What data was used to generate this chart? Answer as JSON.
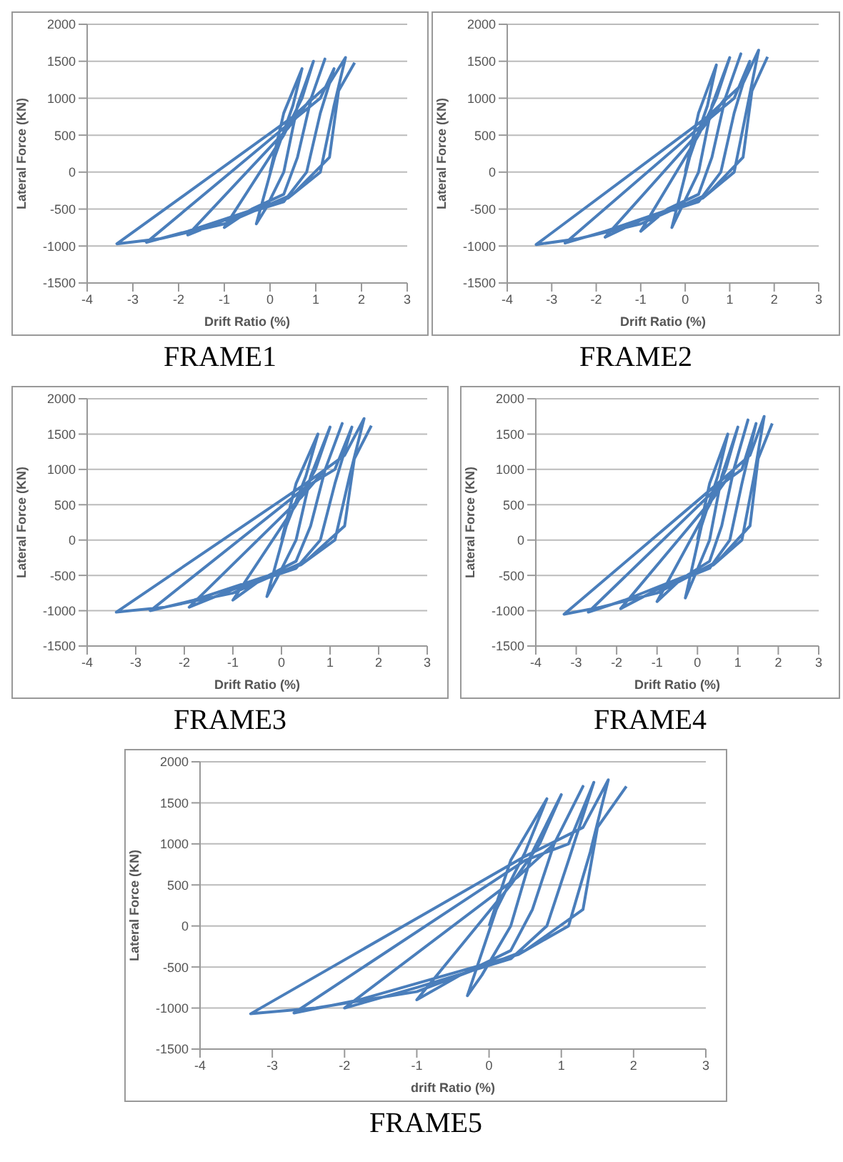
{
  "chart_data": [
    {
      "type": "line",
      "title": "FRAME1",
      "xlabel": "Drift Ratio (%)",
      "ylabel": "Lateral Force (KN)",
      "xlim": [
        -4,
        3
      ],
      "xticks": [
        -4,
        -3,
        -2,
        -1,
        0,
        1,
        2,
        3
      ],
      "ylim": [
        -1500,
        2000
      ],
      "yticks": [
        -1500,
        -1000,
        -500,
        0,
        500,
        1000,
        1500,
        2000
      ],
      "grid": "y",
      "marker": "none",
      "line_style": "solid",
      "series": [
        {
          "color": "#4a7ebb",
          "x": [
            0,
            0.3,
            0.7,
            0.5,
            0.1,
            -0.3,
            -0.1,
            0.3,
            0.6,
            0.95,
            0.7,
            0.3,
            -1,
            -0.4,
            0.3,
            0.6,
            0.9,
            1.2,
            0.9,
            0.4,
            -1.8,
            -1,
            0.3,
            0.8,
            1.1,
            1.4,
            1.1,
            0.5,
            -2.7,
            -1.8,
            0.4,
            1.1,
            1.4,
            1.65,
            1.3,
            0.5,
            -3.35,
            -2.4,
            -1,
            0.5,
            1.3,
            1.5,
            1.85
          ],
          "values": [
            0,
            800,
            1400,
            900,
            200,
            -700,
            -500,
            0,
            900,
            1500,
            1000,
            500,
            -750,
            -500,
            -300,
            200,
            1000,
            1530,
            1000,
            600,
            -850,
            -650,
            -400,
            0,
            800,
            1400,
            1000,
            700,
            -950,
            -800,
            -350,
            0,
            900,
            1550,
            1200,
            750,
            -970,
            -900,
            -700,
            -300,
            200,
            1100,
            1480
          ]
        }
      ]
    },
    {
      "type": "line",
      "title": "FRAME2",
      "xlabel": "Drift Ratio (%)",
      "ylabel": "Lateral Force (KN)",
      "xlim": [
        -4,
        3
      ],
      "xticks": [
        -4,
        -3,
        -2,
        -1,
        0,
        1,
        2,
        3
      ],
      "ylim": [
        -1500,
        2000
      ],
      "yticks": [
        -1500,
        -1000,
        -500,
        0,
        500,
        1000,
        1500,
        2000
      ],
      "grid": "y",
      "marker": "none",
      "line_style": "solid",
      "series": [
        {
          "color": "#4a7ebb",
          "x": [
            0,
            0.3,
            0.7,
            0.5,
            0.1,
            -0.3,
            -0.1,
            0.3,
            0.6,
            1,
            0.7,
            0.3,
            -1,
            -0.4,
            0.3,
            0.6,
            0.9,
            1.25,
            0.9,
            0.4,
            -1.8,
            -1,
            0.3,
            0.8,
            1.1,
            1.45,
            1.1,
            0.5,
            -2.7,
            -1.8,
            0.4,
            1.1,
            1.4,
            1.65,
            1.3,
            0.5,
            -3.35,
            -2.4,
            -1,
            0.5,
            1.3,
            1.5,
            1.85
          ],
          "values": [
            0,
            800,
            1450,
            900,
            200,
            -750,
            -500,
            0,
            900,
            1550,
            1000,
            500,
            -800,
            -500,
            -300,
            200,
            1000,
            1600,
            1000,
            600,
            -880,
            -650,
            -400,
            0,
            800,
            1500,
            1000,
            700,
            -960,
            -800,
            -350,
            0,
            900,
            1650,
            1200,
            750,
            -980,
            -900,
            -700,
            -300,
            200,
            1100,
            1560
          ]
        }
      ]
    },
    {
      "type": "line",
      "title": "FRAME3",
      "xlabel": "Drift Ratio (%)",
      "ylabel": "Lateral Force (KN)",
      "xlim": [
        -4,
        3
      ],
      "xticks": [
        -4,
        -3,
        -2,
        -1,
        0,
        1,
        2,
        3
      ],
      "ylim": [
        -1500,
        2000
      ],
      "yticks": [
        -1500,
        -1000,
        -500,
        0,
        500,
        1000,
        1500,
        2000
      ],
      "grid": "y",
      "marker": "none",
      "line_style": "solid",
      "series": [
        {
          "color": "#4a7ebb",
          "x": [
            0,
            0.3,
            0.75,
            0.5,
            0.1,
            -0.3,
            -0.1,
            0.3,
            0.6,
            1,
            0.7,
            0.3,
            -1,
            -0.4,
            0.3,
            0.6,
            0.9,
            1.25,
            0.9,
            0.4,
            -1.9,
            -1,
            0.3,
            0.8,
            1.1,
            1.45,
            1.1,
            0.5,
            -2.7,
            -1.8,
            0.4,
            1.1,
            1.4,
            1.7,
            1.3,
            0.5,
            -3.4,
            -2.4,
            -1,
            0.5,
            1.3,
            1.5,
            1.85
          ],
          "values": [
            0,
            800,
            1500,
            900,
            200,
            -800,
            -550,
            0,
            900,
            1600,
            1000,
            500,
            -850,
            -550,
            -300,
            200,
            1000,
            1650,
            1000,
            600,
            -950,
            -700,
            -400,
            0,
            800,
            1600,
            1000,
            750,
            -1000,
            -850,
            -350,
            0,
            900,
            1720,
            1200,
            800,
            -1020,
            -950,
            -750,
            -300,
            200,
            1150,
            1620
          ]
        }
      ]
    },
    {
      "type": "line",
      "title": "FRAME4",
      "xlabel": "Drift Ratio (%)",
      "ylabel": "Lateral Force (KN)",
      "xlim": [
        -4,
        3
      ],
      "xticks": [
        -4,
        -3,
        -2,
        -1,
        0,
        1,
        2,
        3
      ],
      "ylim": [
        -1500,
        2000
      ],
      "yticks": [
        -1500,
        -1000,
        -500,
        0,
        500,
        1000,
        1500,
        2000
      ],
      "grid": "y",
      "marker": "none",
      "line_style": "solid",
      "series": [
        {
          "color": "#4a7ebb",
          "x": [
            0,
            0.3,
            0.75,
            0.5,
            0.1,
            -0.3,
            -0.1,
            0.3,
            0.6,
            1,
            0.7,
            0.3,
            -1,
            -0.4,
            0.3,
            0.6,
            0.9,
            1.25,
            0.9,
            0.4,
            -1.9,
            -1,
            0.3,
            0.8,
            1.1,
            1.45,
            1.1,
            0.5,
            -2.7,
            -1.8,
            0.4,
            1.1,
            1.4,
            1.65,
            1.3,
            0.5,
            -3.3,
            -2.4,
            -1,
            0.5,
            1.3,
            1.5,
            1.85
          ],
          "values": [
            0,
            800,
            1500,
            900,
            200,
            -820,
            -550,
            0,
            900,
            1600,
            1000,
            500,
            -870,
            -550,
            -300,
            200,
            1000,
            1700,
            1000,
            600,
            -970,
            -700,
            -400,
            0,
            800,
            1650,
            1000,
            750,
            -1020,
            -850,
            -350,
            0,
            900,
            1750,
            1200,
            800,
            -1050,
            -950,
            -750,
            -300,
            200,
            1150,
            1650
          ]
        }
      ]
    },
    {
      "type": "line",
      "title": "FRAME5",
      "xlabel": "drift Ratio (%)",
      "ylabel": "Lateral Force (KN)",
      "xlim": [
        -4,
        3
      ],
      "xticks": [
        -4,
        -3,
        -2,
        -1,
        0,
        1,
        2,
        3
      ],
      "ylim": [
        -1500,
        2000
      ],
      "yticks": [
        -1500,
        -1000,
        -500,
        0,
        500,
        1000,
        1500,
        2000
      ],
      "grid": "y",
      "marker": "none",
      "line_style": "solid",
      "series": [
        {
          "color": "#4a7ebb",
          "x": [
            0,
            0.3,
            0.8,
            0.5,
            0.1,
            -0.3,
            -0.1,
            0.3,
            0.6,
            1,
            0.7,
            0.3,
            -1,
            -0.4,
            0.3,
            0.6,
            0.9,
            1.3,
            0.9,
            0.4,
            -2,
            -1,
            0.3,
            0.8,
            1.1,
            1.45,
            1.1,
            0.5,
            -2.7,
            -1.8,
            0.4,
            1.1,
            1.4,
            1.65,
            1.3,
            0.5,
            -3.3,
            -2.4,
            -1,
            0.5,
            1.3,
            1.5,
            1.9
          ],
          "values": [
            0,
            800,
            1550,
            900,
            200,
            -850,
            -600,
            0,
            900,
            1600,
            1000,
            500,
            -900,
            -600,
            -300,
            200,
            1000,
            1700,
            1000,
            600,
            -1000,
            -750,
            -400,
            0,
            800,
            1750,
            1000,
            800,
            -1060,
            -900,
            -350,
            0,
            900,
            1780,
            1200,
            850,
            -1070,
            -1000,
            -800,
            -300,
            200,
            1200,
            1700
          ]
        }
      ]
    }
  ]
}
